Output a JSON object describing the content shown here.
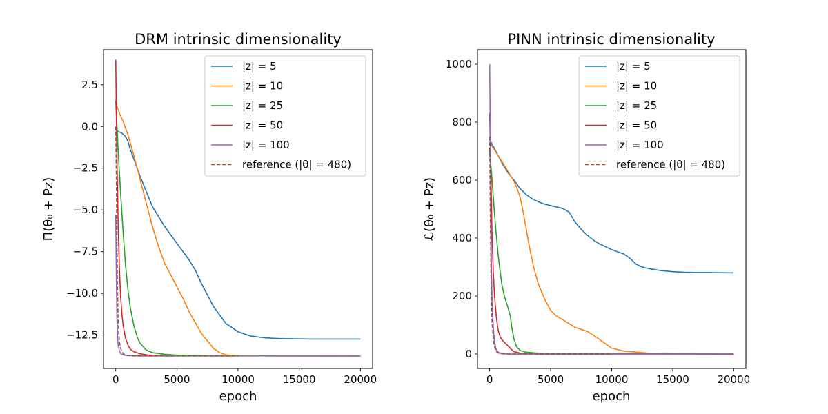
{
  "chart_data": [
    {
      "type": "line",
      "title": "DRM intrinsic dimensionality",
      "xlabel": "epoch",
      "ylabel": "Π(θ₀ + Pz)",
      "xlim": [
        -1000,
        21000
      ],
      "ylim": [
        -14.5,
        4.6
      ],
      "xticks": [
        0,
        5000,
        10000,
        15000,
        20000
      ],
      "xtick_labels": [
        "0",
        "5000",
        "10000",
        "15000",
        "20000"
      ],
      "yticks": [
        2.5,
        0.0,
        -2.5,
        -5.0,
        -7.5,
        -10.0,
        -12.5
      ],
      "ytick_labels": [
        "2.5",
        "0.0",
        "−2.5",
        "−5.0",
        "−7.5",
        "−10.0",
        "−12.5"
      ],
      "legend_position": "upper right",
      "series": [
        {
          "name": "|z| = 5",
          "color": "#1f77b4",
          "style": "solid",
          "x": [
            0,
            200,
            500,
            800,
            1000,
            1200,
            1500,
            2000,
            3000,
            4000,
            5000,
            6000,
            6500,
            7000,
            8000,
            9000,
            10000,
            11000,
            12000,
            13000,
            14000,
            15000,
            16000,
            18000,
            20000
          ],
          "y": [
            -0.3,
            -0.3,
            -0.4,
            -0.6,
            -0.9,
            -1.4,
            -2.0,
            -3.0,
            -4.8,
            -6.0,
            -7.0,
            -8.0,
            -8.6,
            -9.4,
            -10.8,
            -11.8,
            -12.3,
            -12.55,
            -12.65,
            -12.7,
            -12.72,
            -12.73,
            -12.74,
            -12.74,
            -12.74
          ]
        },
        {
          "name": "|z| = 10",
          "color": "#ff7f0e",
          "style": "solid",
          "x": [
            0,
            100,
            300,
            600,
            1000,
            1500,
            2000,
            2500,
            3000,
            3500,
            4000,
            5000,
            5500,
            6000,
            7000,
            8000,
            8500,
            9000,
            9500,
            10000,
            11000,
            13000,
            20000
          ],
          "y": [
            1.6,
            1.2,
            0.8,
            0.3,
            -0.5,
            -1.8,
            -3.2,
            -4.6,
            -6.0,
            -7.2,
            -8.2,
            -9.6,
            -10.3,
            -11.1,
            -12.4,
            -13.3,
            -13.55,
            -13.68,
            -13.72,
            -13.74,
            -13.74,
            -13.75,
            -13.75
          ]
        },
        {
          "name": "|z| = 25",
          "color": "#2ca02c",
          "style": "solid",
          "x": [
            0,
            100,
            200,
            400,
            600,
            800,
            1000,
            1200,
            1500,
            1800,
            2000,
            2500,
            3000,
            4000,
            5000,
            6000,
            8000,
            20000
          ],
          "y": [
            1.5,
            0.0,
            -1.5,
            -4.0,
            -6.3,
            -8.3,
            -9.8,
            -10.9,
            -12.0,
            -12.7,
            -13.0,
            -13.4,
            -13.55,
            -13.65,
            -13.7,
            -13.72,
            -13.74,
            -13.75
          ]
        },
        {
          "name": "|z| = 50",
          "color": "#d62728",
          "style": "solid",
          "x": [
            0,
            50,
            100,
            200,
            300,
            400,
            500,
            600,
            800,
            1000,
            1200,
            1500,
            2000,
            2500,
            3000,
            4000,
            20000
          ],
          "y": [
            4.0,
            1.0,
            -2.0,
            -6.0,
            -8.5,
            -10.2,
            -11.2,
            -11.9,
            -12.7,
            -13.1,
            -13.35,
            -13.5,
            -13.62,
            -13.68,
            -13.72,
            -13.74,
            -13.75
          ]
        },
        {
          "name": "|z| = 100",
          "color": "#9467bd",
          "style": "solid",
          "x": [
            0,
            50,
            100,
            150,
            200,
            300,
            400,
            500,
            700,
            1000,
            1500,
            2000,
            20000
          ],
          "y": [
            -5.3,
            -9.0,
            -11.5,
            -12.6,
            -13.1,
            -13.45,
            -13.6,
            -13.66,
            -13.7,
            -13.72,
            -13.74,
            -13.75,
            -13.75
          ]
        },
        {
          "name": "reference (|θ| = 480)",
          "color": "#8c564b",
          "style": "dashed",
          "x": [
            0,
            50,
            100,
            150,
            200,
            300,
            400,
            500,
            600,
            800,
            1000,
            1500,
            2000,
            3000,
            5000,
            10000
          ],
          "y": [
            0.0,
            -3.0,
            -7.0,
            -10.0,
            -11.8,
            -12.9,
            -13.3,
            -13.5,
            -13.6,
            -13.7,
            -13.73,
            -13.75,
            -13.75,
            -13.75,
            -13.75,
            -13.75
          ]
        }
      ]
    },
    {
      "type": "line",
      "title": "PINN intrinsic dimensionality",
      "xlabel": "epoch",
      "ylabel": "ℒ(θ₀ + Pz)",
      "xlim": [
        -1000,
        21000
      ],
      "ylim": [
        -50,
        1050
      ],
      "xticks": [
        0,
        5000,
        10000,
        15000,
        20000
      ],
      "xtick_labels": [
        "0",
        "5000",
        "10000",
        "15000",
        "20000"
      ],
      "yticks": [
        0,
        200,
        400,
        600,
        800,
        1000
      ],
      "ytick_labels": [
        "0",
        "200",
        "400",
        "600",
        "800",
        "1000"
      ],
      "legend_position": "upper right",
      "series": [
        {
          "name": "|z| = 5",
          "color": "#1f77b4",
          "style": "solid",
          "x": [
            0,
            500,
            1000,
            1500,
            2000,
            2500,
            3000,
            3500,
            4000,
            4500,
            5000,
            5500,
            6000,
            6500,
            7000,
            7500,
            8000,
            8500,
            9000,
            10000,
            11000,
            11500,
            12000,
            12500,
            13000,
            14000,
            15000,
            16000,
            17000,
            18000,
            20000
          ],
          "y": [
            740,
            700,
            660,
            625,
            600,
            570,
            550,
            535,
            525,
            517,
            512,
            507,
            502,
            490,
            455,
            430,
            410,
            393,
            380,
            360,
            345,
            330,
            310,
            300,
            295,
            288,
            284,
            282,
            281,
            281,
            280
          ]
        },
        {
          "name": "|z| = 10",
          "color": "#ff7f0e",
          "style": "solid",
          "x": [
            0,
            300,
            600,
            1000,
            1500,
            2000,
            2300,
            2500,
            2700,
            3000,
            3300,
            3600,
            4000,
            4500,
            5000,
            5500,
            6000,
            6500,
            7000,
            8000,
            8500,
            9000,
            9500,
            10000,
            11000,
            13000,
            15000,
            20000
          ],
          "y": [
            730,
            710,
            690,
            665,
            630,
            595,
            565,
            540,
            500,
            430,
            360,
            300,
            240,
            190,
            150,
            130,
            118,
            105,
            92,
            78,
            65,
            50,
            35,
            20,
            10,
            3,
            1,
            0
          ]
        },
        {
          "name": "|z| = 25",
          "color": "#2ca02c",
          "style": "solid",
          "x": [
            0,
            100,
            200,
            300,
            500,
            700,
            900,
            1000,
            1200,
            1500,
            1700,
            1800,
            2000,
            2200,
            2500,
            3000,
            4000,
            5000,
            7000,
            20000
          ],
          "y": [
            700,
            650,
            600,
            540,
            430,
            340,
            270,
            240,
            200,
            160,
            130,
            95,
            50,
            25,
            12,
            6,
            3,
            2,
            1,
            0
          ]
        },
        {
          "name": "|z| = 50",
          "color": "#d62728",
          "style": "solid",
          "x": [
            0,
            100,
            200,
            300,
            400,
            500,
            600,
            700,
            900,
            1200,
            1500,
            1800,
            2000,
            2500,
            3000,
            4000,
            20000
          ],
          "y": [
            830,
            620,
            400,
            280,
            200,
            150,
            110,
            80,
            55,
            40,
            28,
            15,
            8,
            3,
            1,
            0,
            0
          ]
        },
        {
          "name": "|z| = 100",
          "color": "#9467bd",
          "style": "solid",
          "x": [
            0,
            50,
            100,
            150,
            200,
            300,
            400,
            500,
            600,
            800,
            1000,
            1500,
            20000
          ],
          "y": [
            1000,
            750,
            450,
            280,
            180,
            90,
            40,
            20,
            10,
            4,
            1,
            0,
            0
          ]
        },
        {
          "name": "reference (|θ| = 480)",
          "color": "#8c564b",
          "style": "dashed",
          "x": [
            0,
            50,
            100,
            150,
            200,
            300,
            400,
            500,
            600,
            800,
            1000,
            1500,
            3000,
            10000
          ],
          "y": [
            750,
            500,
            300,
            180,
            110,
            50,
            25,
            12,
            6,
            2,
            1,
            0,
            0,
            0
          ]
        }
      ]
    }
  ]
}
